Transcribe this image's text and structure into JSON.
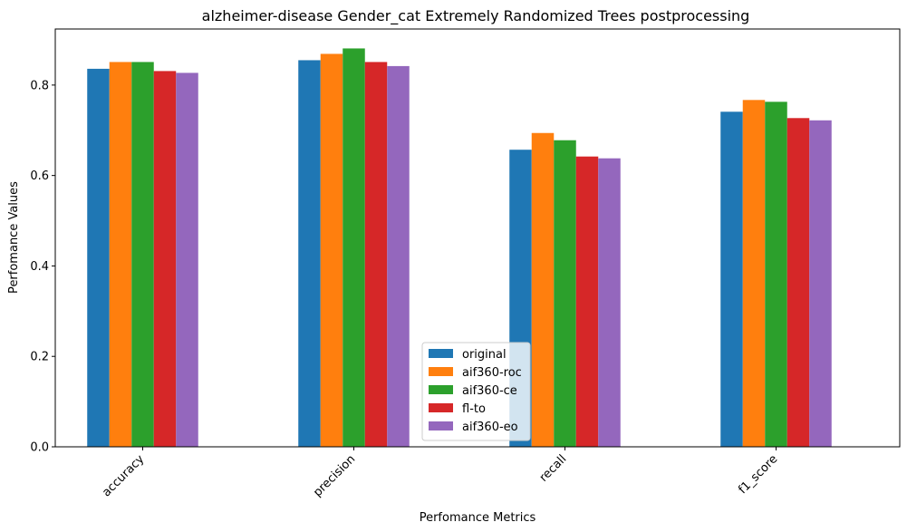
{
  "chart_data": {
    "type": "bar",
    "title": "alzheimer-disease Gender_cat Extremely Randomized Trees postprocessing",
    "xlabel": "Perfomance Metrics",
    "ylabel": "Perfomance Values",
    "categories": [
      "accuracy",
      "precision",
      "recall",
      "f1_score"
    ],
    "series": [
      {
        "name": "original",
        "color": "#1f77b4",
        "values": [
          0.836,
          0.855,
          0.657,
          0.741
        ]
      },
      {
        "name": "aif360-roc",
        "color": "#ff7f0e",
        "values": [
          0.851,
          0.869,
          0.694,
          0.767
        ]
      },
      {
        "name": "aif360-ce",
        "color": "#2ca02c",
        "values": [
          0.851,
          0.881,
          0.678,
          0.763
        ]
      },
      {
        "name": "fl-to",
        "color": "#d62728",
        "values": [
          0.831,
          0.851,
          0.642,
          0.727
        ]
      },
      {
        "name": "aif360-eo",
        "color": "#9467bd",
        "values": [
          0.827,
          0.842,
          0.638,
          0.722
        ]
      }
    ],
    "ylim": [
      0,
      0.924
    ],
    "yticks": [
      0.0,
      0.2,
      0.4,
      0.6,
      0.8
    ],
    "ytick_labels": [
      "0.0",
      "0.2",
      "0.4",
      "0.6",
      "0.8"
    ],
    "grid": false,
    "legend_position": "lower center"
  }
}
